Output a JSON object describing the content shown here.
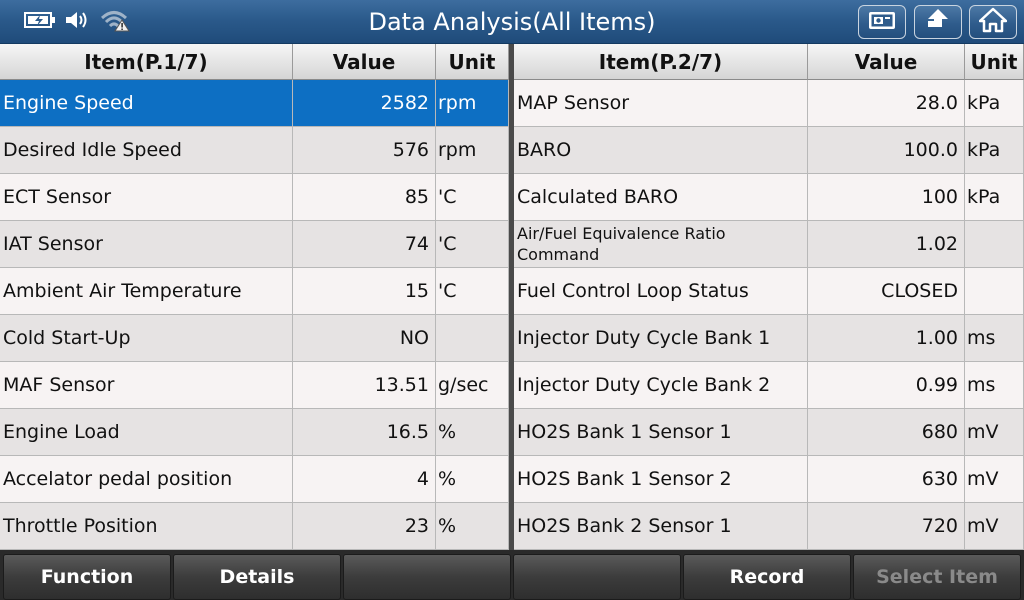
{
  "header": {
    "title": "Data Analysis(All Items)",
    "status_icons": [
      "battery-charging-icon",
      "speaker-volume-icon",
      "wifi-warning-icon"
    ],
    "right_buttons": [
      "screenshot-camera-icon",
      "back-arrow-icon",
      "home-icon"
    ]
  },
  "left_table": {
    "headers": {
      "item": "Item(P.1/7)",
      "value": "Value",
      "unit": "Unit"
    },
    "rows": [
      {
        "item": "Engine Speed",
        "value": "2582",
        "unit": "rpm",
        "selected": true
      },
      {
        "item": "Desired Idle Speed",
        "value": "576",
        "unit": "rpm"
      },
      {
        "item": "ECT Sensor",
        "value": "85",
        "unit": "'C"
      },
      {
        "item": "IAT Sensor",
        "value": "74",
        "unit": "'C"
      },
      {
        "item": "Ambient Air Temperature",
        "value": "15",
        "unit": "'C"
      },
      {
        "item": "Cold Start-Up",
        "value": "NO",
        "unit": ""
      },
      {
        "item": "MAF Sensor",
        "value": "13.51",
        "unit": "g/sec"
      },
      {
        "item": "Engine Load",
        "value": "16.5",
        "unit": "%"
      },
      {
        "item": "Accelator pedal position",
        "value": "4",
        "unit": "%"
      },
      {
        "item": "Throttle Position",
        "value": "23",
        "unit": "%"
      }
    ]
  },
  "right_table": {
    "headers": {
      "item": "Item(P.2/7)",
      "value": "Value",
      "unit": "Unit"
    },
    "rows": [
      {
        "item": "MAP Sensor",
        "value": "28.0",
        "unit": "kPa"
      },
      {
        "item": "BARO",
        "value": "100.0",
        "unit": "kPa"
      },
      {
        "item": "Calculated BARO",
        "value": "100",
        "unit": "kPa"
      },
      {
        "item": "Air/Fuel Equivalence Ratio Command",
        "value": "1.02",
        "unit": "",
        "two_line": true
      },
      {
        "item": "Fuel Control Loop Status",
        "value": "CLOSED",
        "unit": ""
      },
      {
        "item": "Injector Duty Cycle Bank 1",
        "value": "1.00",
        "unit": "ms"
      },
      {
        "item": "Injector Duty Cycle Bank 2",
        "value": "0.99",
        "unit": "ms"
      },
      {
        "item": "HO2S Bank 1 Sensor 1",
        "value": "680",
        "unit": "mV"
      },
      {
        "item": "HO2S Bank 1 Sensor 2",
        "value": "630",
        "unit": "mV"
      },
      {
        "item": "HO2S Bank 2 Sensor 1",
        "value": "720",
        "unit": "mV"
      }
    ]
  },
  "footer": {
    "buttons": [
      {
        "label": "Function",
        "enabled": true
      },
      {
        "label": "Details",
        "enabled": true
      },
      {
        "label": "",
        "enabled": true
      },
      {
        "label": "",
        "enabled": true
      },
      {
        "label": "Record",
        "enabled": true
      },
      {
        "label": "Select Item",
        "enabled": false
      }
    ]
  },
  "colors": {
    "accent": "#0d6fc3",
    "titlebar": "#2b5a8b"
  }
}
